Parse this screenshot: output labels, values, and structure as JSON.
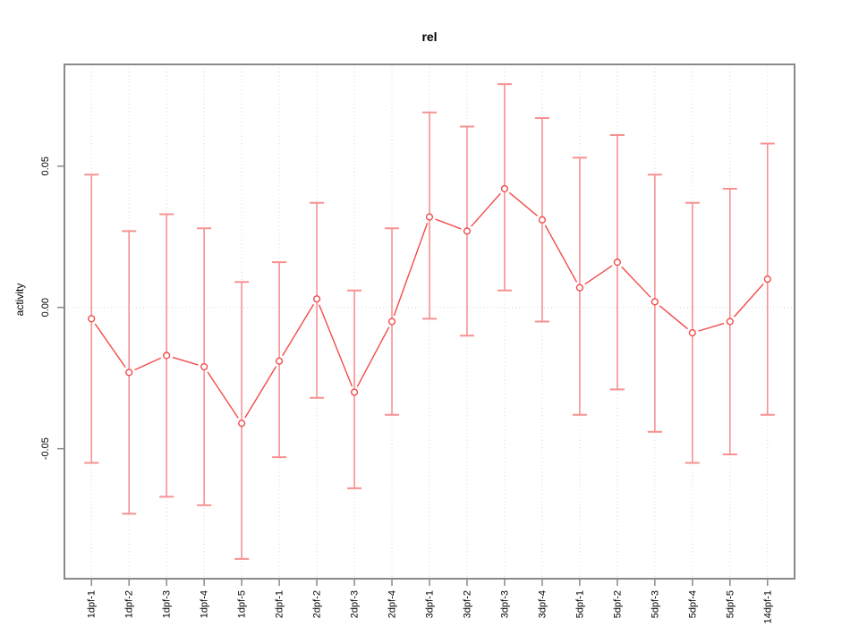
{
  "chart_data": {
    "type": "line",
    "title": "rel",
    "xlabel": "",
    "ylabel": "activity",
    "marker": "open-circle",
    "legend_position": "none",
    "grid": "dotted vertical line at each category plus dotted horizontal line at 0",
    "categories": [
      "1dpf-1",
      "1dpf-2",
      "1dpf-3",
      "1dpf-4",
      "1dpf-5",
      "2dpf-1",
      "2dpf-2",
      "2dpf-3",
      "2dpf-4",
      "3dpf-1",
      "3dpf-2",
      "3dpf-3",
      "3dpf-4",
      "5dpf-1",
      "5dpf-2",
      "5dpf-3",
      "5dpf-4",
      "5dpf-5",
      "14dpf-1"
    ],
    "series": [
      {
        "name": "rel",
        "values": [
          -0.004,
          -0.023,
          -0.017,
          -0.021,
          -0.041,
          -0.019,
          0.003,
          -0.03,
          -0.005,
          0.032,
          0.027,
          0.042,
          0.031,
          0.007,
          0.016,
          0.002,
          -0.009,
          -0.005,
          0.01
        ],
        "upper": [
          0.047,
          0.027,
          0.033,
          0.028,
          0.009,
          0.016,
          0.037,
          0.006,
          0.028,
          0.069,
          0.064,
          0.079,
          0.067,
          0.053,
          0.061,
          0.047,
          0.037,
          0.042,
          0.058
        ],
        "lower": [
          -0.055,
          -0.073,
          -0.067,
          -0.07,
          -0.089,
          -0.053,
          -0.032,
          -0.064,
          -0.038,
          -0.004,
          -0.01,
          0.006,
          -0.005,
          -0.038,
          -0.029,
          -0.044,
          -0.055,
          -0.052,
          -0.038
        ]
      }
    ],
    "ylim": [
      -0.096,
      0.086
    ],
    "yticks": [
      -0.05,
      0,
      0.05
    ],
    "ytick_labels": [
      "-0.05",
      "0.00",
      "0.05"
    ],
    "colors": {
      "series": "#f34b4b",
      "error_bar": "#f79191",
      "grid": "#d8d8d8",
      "frame": "#8a8a8a",
      "text": "#000000"
    }
  }
}
